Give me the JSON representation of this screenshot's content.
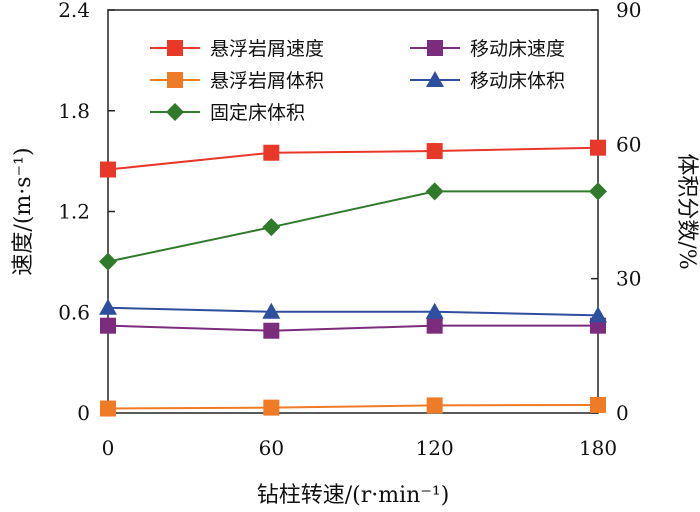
{
  "chart_data": {
    "type": "line",
    "xlabel": "钻柱转速/(r·min⁻¹)",
    "ylabel_left": "速度/(m·s⁻¹)",
    "ylabel_right": "体积分数/%",
    "x_ticks": [
      "0",
      "60",
      "120",
      "180"
    ],
    "yleft_ticks": [
      "0",
      "0.6",
      "1.2",
      "1.8",
      "2.4"
    ],
    "yright_ticks": [
      "0",
      "30",
      "60",
      "90"
    ],
    "xlim": [
      0,
      180
    ],
    "ylim_left": [
      0,
      2.4
    ],
    "ylim_right": [
      0,
      90
    ],
    "grid": false,
    "legend_position": "top-left",
    "series": [
      {
        "name": "悬浮岩屑速度",
        "axis": "left",
        "color": "#e8382a",
        "marker": "square",
        "x": [
          0,
          60,
          120,
          180
        ],
        "values": [
          1.45,
          1.55,
          1.56,
          1.58
        ]
      },
      {
        "name": "移动床速度",
        "axis": "left",
        "color": "#7b2c7d",
        "marker": "square",
        "x": [
          0,
          60,
          120,
          180
        ],
        "values": [
          0.52,
          0.49,
          0.52,
          0.52
        ]
      },
      {
        "name": "悬浮岩屑体积",
        "axis": "right",
        "color": "#f07b27",
        "marker": "square",
        "x": [
          0,
          60,
          120,
          180
        ],
        "values": [
          1.0,
          1.2,
          1.7,
          1.8
        ]
      },
      {
        "name": "移动床体积",
        "axis": "right",
        "color": "#2e4e9e",
        "marker": "triangle",
        "x": [
          0,
          60,
          120,
          180
        ],
        "values": [
          23.5,
          22.6,
          22.6,
          21.8
        ]
      },
      {
        "name": "固定床体积",
        "axis": "right",
        "color": "#2f7a2b",
        "marker": "diamond",
        "x": [
          0,
          60,
          120,
          180
        ],
        "values": [
          33.8,
          41.5,
          49.5,
          49.5
        ]
      }
    ]
  }
}
